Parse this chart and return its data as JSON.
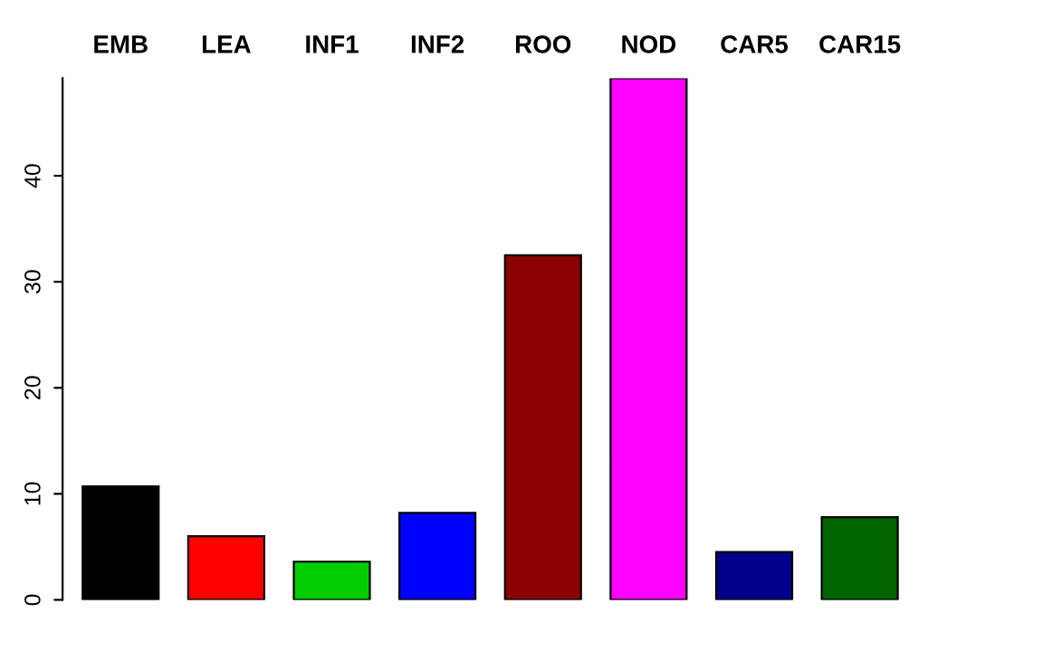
{
  "chart_data": {
    "type": "bar",
    "categories": [
      "EMB",
      "LEA",
      "INF1",
      "INF2",
      "ROO",
      "NOD",
      "CAR5",
      "CAR15"
    ],
    "values": [
      10.7,
      6.0,
      3.6,
      8.2,
      32.5,
      49.2,
      4.5,
      7.8
    ],
    "colors": [
      "#000000",
      "#ff0000",
      "#00cd00",
      "#0000ff",
      "#8b0000",
      "#ff00ff",
      "#00008b",
      "#006400"
    ],
    "ylim": [
      0,
      49.2
    ],
    "yticks": [
      0,
      10,
      20,
      30,
      40
    ],
    "grid": false,
    "legend": false
  }
}
